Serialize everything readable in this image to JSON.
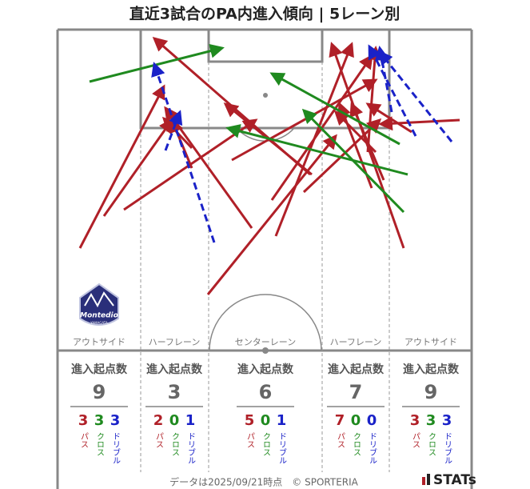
{
  "title": "直近3試合のPA内進入傾向 | 5レーン別",
  "lanes": [
    {
      "label": "アウトサイド",
      "header": "進入起点数",
      "total": 9,
      "counts": [
        {
          "value": 3,
          "label": "パス"
        },
        {
          "value": 3,
          "label": "クロス"
        },
        {
          "value": 3,
          "label": "ドリブル"
        }
      ]
    },
    {
      "label": "ハーフレーン",
      "header": "進入起点数",
      "total": 3,
      "counts": [
        {
          "value": 2,
          "label": "パス"
        },
        {
          "value": 0,
          "label": "クロス"
        },
        {
          "value": 1,
          "label": "ドリブル"
        }
      ]
    },
    {
      "label": "センターレーン",
      "header": "進入起点数",
      "total": 6,
      "counts": [
        {
          "value": 5,
          "label": "パス"
        },
        {
          "value": 0,
          "label": "クロス"
        },
        {
          "value": 1,
          "label": "ドリブル"
        }
      ]
    },
    {
      "label": "ハーフレーン",
      "header": "進入起点数",
      "total": 7,
      "counts": [
        {
          "value": 7,
          "label": "パス"
        },
        {
          "value": 0,
          "label": "クロス"
        },
        {
          "value": 0,
          "label": "ドリブル"
        }
      ]
    },
    {
      "label": "アウトサイド",
      "header": "進入起点数",
      "total": 9,
      "counts": [
        {
          "value": 3,
          "label": "パス"
        },
        {
          "value": 3,
          "label": "クロス"
        },
        {
          "value": 3,
          "label": "ドリブル"
        }
      ]
    }
  ],
  "logo": {
    "name": "Montedio",
    "place": "YAMAGATA"
  },
  "footer": "データは2025/09/21時点　© SPORTERIA",
  "brand": "STATs"
}
